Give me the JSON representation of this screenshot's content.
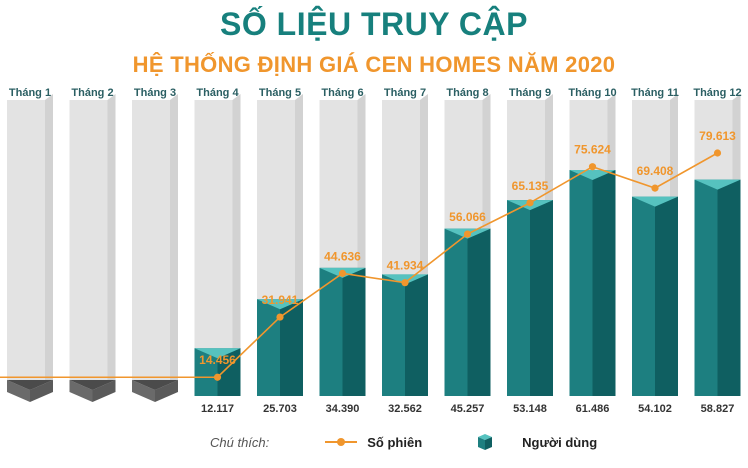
{
  "title": "SỐ LIỆU TRUY CẬP",
  "subtitle": "HỆ THỐNG ĐỊNH GIÁ CEN HOMES NĂM 2020",
  "colors": {
    "title": "#17807d",
    "subtitle": "#f0962d",
    "line": "#f0962d",
    "bar_front": "#1d7f80",
    "bar_side": "#0f5f61",
    "bar_top": "#56c2bf",
    "column_front": "#e3e3e3",
    "column_side": "#d2d2d2",
    "empty_base": "#6a6a6a"
  },
  "legend": {
    "caption": "Chú thích:",
    "line_label": "Số phiên",
    "bar_label": "Người dùng"
  },
  "chart_data": {
    "type": "bar+line",
    "categories": [
      "Tháng 1",
      "Tháng 2",
      "Tháng 3",
      "Tháng 4",
      "Tháng 5",
      "Tháng 6",
      "Tháng 7",
      "Tháng 8",
      "Tháng 9",
      "Tháng 10",
      "Tháng 11",
      "Tháng 12"
    ],
    "series": [
      {
        "name": "Người dùng",
        "kind": "bar",
        "values": [
          null,
          null,
          null,
          12117,
          25703,
          34390,
          32562,
          45257,
          53148,
          61486,
          54102,
          58827
        ],
        "labels": [
          "",
          "",
          "",
          "12.117",
          "25.703",
          "34.390",
          "32.562",
          "45.257",
          "53.148",
          "61.486",
          "54.102",
          "58.827"
        ]
      },
      {
        "name": "Số phiên",
        "kind": "line",
        "values": [
          null,
          null,
          null,
          14456,
          31941,
          44636,
          41934,
          56066,
          65135,
          75624,
          69408,
          79613
        ],
        "labels": [
          "",
          "",
          "",
          "14.456",
          "31.941",
          "44.636",
          "41.934",
          "56.066",
          "65.135",
          "75.624",
          "69.408",
          "79.613"
        ]
      }
    ],
    "grid": false,
    "legend_position": "bottom"
  }
}
